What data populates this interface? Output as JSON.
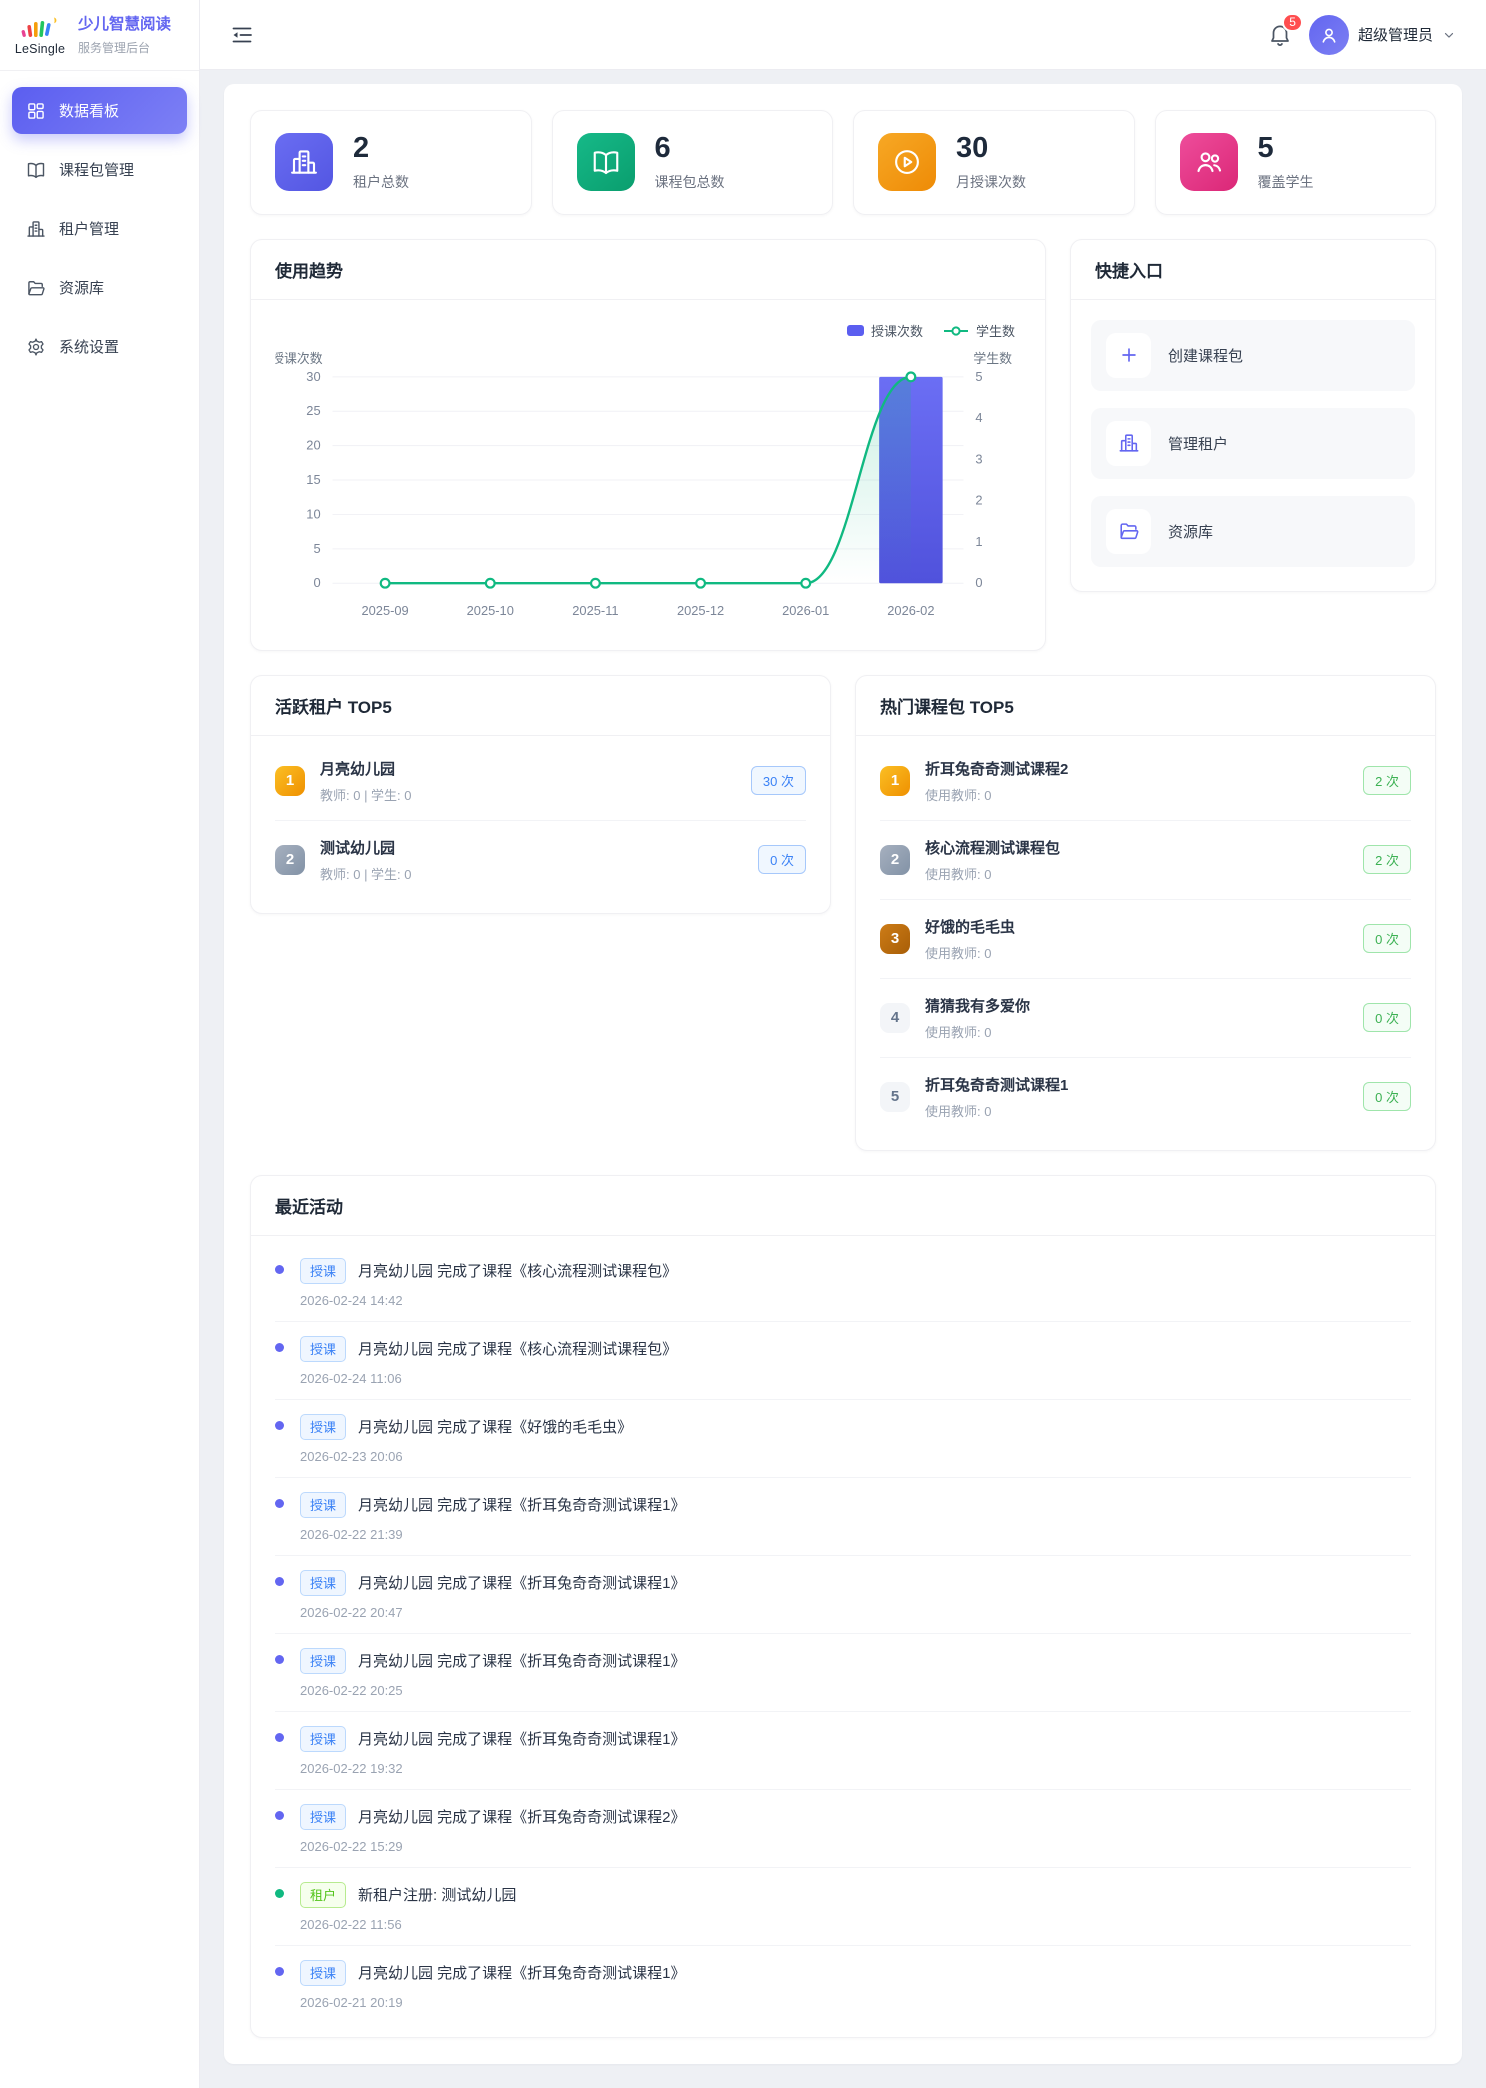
{
  "sidebar": {
    "logo_text": "LeSingle",
    "title": "少儿智慧阅读",
    "subtitle": "服务管理后台",
    "items": [
      {
        "id": "dashboard",
        "label": "数据看板",
        "icon": "dashboard-icon",
        "active": true
      },
      {
        "id": "course-packages",
        "label": "课程包管理",
        "icon": "book-icon",
        "active": false
      },
      {
        "id": "tenants",
        "label": "租户管理",
        "icon": "building-icon",
        "active": false
      },
      {
        "id": "resources",
        "label": "资源库",
        "icon": "folder-icon",
        "active": false
      },
      {
        "id": "settings",
        "label": "系统设置",
        "icon": "gear-icon",
        "active": false
      }
    ]
  },
  "header": {
    "notification_count": "5",
    "user_name": "超级管理员"
  },
  "stats": [
    {
      "value": "2",
      "label": "租户总数",
      "icon": "building-icon",
      "color_from": "#6a6df2",
      "color_to": "#5356e2"
    },
    {
      "value": "6",
      "label": "课程包总数",
      "icon": "book-icon",
      "color_from": "#16b988",
      "color_to": "#0a9e6e"
    },
    {
      "value": "30",
      "label": "月授课次数",
      "icon": "play-icon",
      "color_from": "#f7a825",
      "color_to": "#ee8b06"
    },
    {
      "value": "5",
      "label": "覆盖学生",
      "icon": "users-icon",
      "color_from": "#ee4d9b",
      "color_to": "#db2777"
    }
  ],
  "chart_card": {
    "title": "使用趋势"
  },
  "chart_data": {
    "type": "bar+line",
    "categories": [
      "2025-09",
      "2025-10",
      "2025-11",
      "2025-12",
      "2026-01",
      "2026-02"
    ],
    "series": [
      {
        "name": "授课次数",
        "type": "bar",
        "axis": "left",
        "values": [
          0,
          0,
          0,
          0,
          0,
          30
        ],
        "color": "#5b5ef0"
      },
      {
        "name": "学生数",
        "type": "line",
        "axis": "right",
        "values": [
          0,
          0,
          0,
          0,
          0,
          5
        ],
        "color": "#10b981"
      }
    ],
    "left_axis": {
      "title": "授课次数",
      "ticks": [
        0,
        5,
        10,
        15,
        20,
        25,
        30
      ],
      "max": 30
    },
    "right_axis": {
      "title": "学生数",
      "ticks": [
        0,
        1,
        2,
        3,
        4,
        5
      ],
      "max": 5
    },
    "legend_position": "top-right",
    "grid": true
  },
  "quick_access": {
    "title": "快捷入口",
    "items": [
      {
        "id": "create-course-package",
        "label": "创建课程包",
        "icon": "plus-icon"
      },
      {
        "id": "manage-tenants",
        "label": "管理租户",
        "icon": "building-icon"
      },
      {
        "id": "resource-library",
        "label": "资源库",
        "icon": "folder-icon"
      }
    ]
  },
  "active_tenants": {
    "title": "活跃租户 TOP5",
    "items": [
      {
        "rank": "1",
        "name": "月亮幼儿园",
        "meta": "教师: 0 | 学生: 0",
        "count": "30 次"
      },
      {
        "rank": "2",
        "name": "测试幼儿园",
        "meta": "教师: 0 | 学生: 0",
        "count": "0 次"
      }
    ]
  },
  "hot_courses": {
    "title": "热门课程包 TOP5",
    "items": [
      {
        "rank": "1",
        "name": "折耳兔奇奇测试课程2",
        "meta": "使用教师: 0",
        "count": "2 次"
      },
      {
        "rank": "2",
        "name": "核心流程测试课程包",
        "meta": "使用教师: 0",
        "count": "2 次"
      },
      {
        "rank": "3",
        "name": "好饿的毛毛虫",
        "meta": "使用教师: 0",
        "count": "0 次"
      },
      {
        "rank": "4",
        "name": "猜猜我有多爱你",
        "meta": "使用教师: 0",
        "count": "0 次"
      },
      {
        "rank": "5",
        "name": "折耳兔奇奇测试课程1",
        "meta": "使用教师: 0",
        "count": "0 次"
      }
    ]
  },
  "recent_activities": {
    "title": "最近活动",
    "items": [
      {
        "type": "teach",
        "type_label": "授课",
        "text": "月亮幼儿园 完成了课程《核心流程测试课程包》",
        "time": "2026-02-24 14:42"
      },
      {
        "type": "teach",
        "type_label": "授课",
        "text": "月亮幼儿园 完成了课程《核心流程测试课程包》",
        "time": "2026-02-24 11:06"
      },
      {
        "type": "teach",
        "type_label": "授课",
        "text": "月亮幼儿园 完成了课程《好饿的毛毛虫》",
        "time": "2026-02-23 20:06"
      },
      {
        "type": "teach",
        "type_label": "授课",
        "text": "月亮幼儿园 完成了课程《折耳兔奇奇测试课程1》",
        "time": "2026-02-22 21:39"
      },
      {
        "type": "teach",
        "type_label": "授课",
        "text": "月亮幼儿园 完成了课程《折耳兔奇奇测试课程1》",
        "time": "2026-02-22 20:47"
      },
      {
        "type": "teach",
        "type_label": "授课",
        "text": "月亮幼儿园 完成了课程《折耳兔奇奇测试课程1》",
        "time": "2026-02-22 20:25"
      },
      {
        "type": "teach",
        "type_label": "授课",
        "text": "月亮幼儿园 完成了课程《折耳兔奇奇测试课程1》",
        "time": "2026-02-22 19:32"
      },
      {
        "type": "teach",
        "type_label": "授课",
        "text": "月亮幼儿园 完成了课程《折耳兔奇奇测试课程2》",
        "time": "2026-02-22 15:29"
      },
      {
        "type": "tenant",
        "type_label": "租户",
        "text": "新租户注册: 测试幼儿园",
        "time": "2026-02-22 11:56"
      },
      {
        "type": "teach",
        "type_label": "授课",
        "text": "月亮幼儿园 完成了课程《折耳兔奇奇测试课程1》",
        "time": "2026-02-21 20:19"
      }
    ]
  }
}
